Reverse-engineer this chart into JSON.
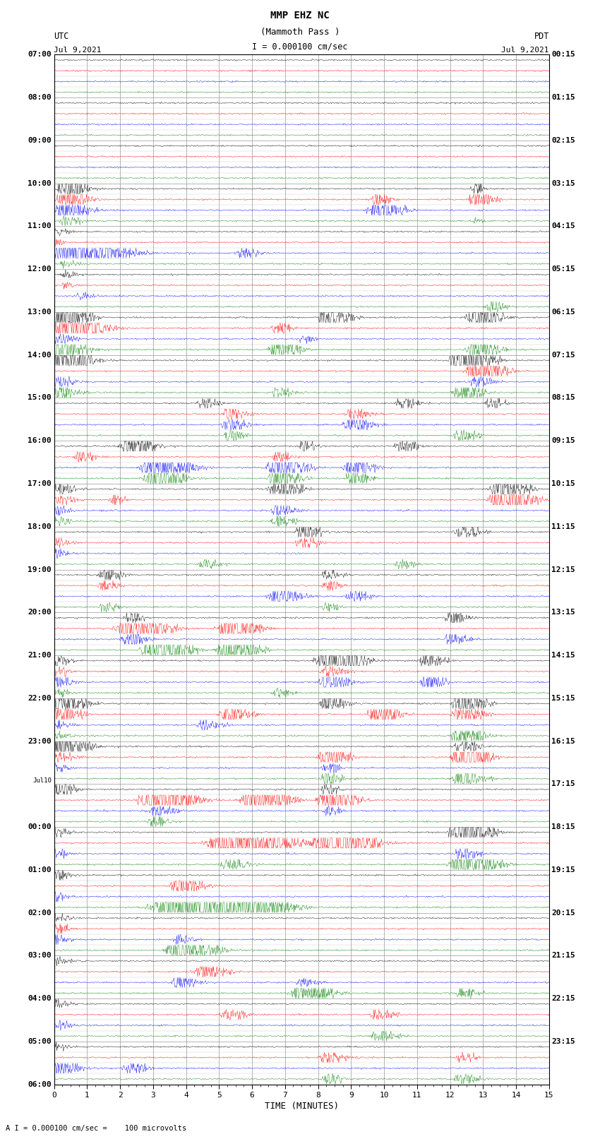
{
  "title_line1": "MMP EHZ NC",
  "title_line2": "(Mammoth Pass )",
  "title_scale": "I = 0.000100 cm/sec",
  "label_left_top": "UTC",
  "label_left_date": "Jul 9,2021",
  "label_right_top": "PDT",
  "label_right_date": "Jul 9,2021",
  "xlabel": "TIME (MINUTES)",
  "footer": "A I = 0.000100 cm/sec =    100 microvolts",
  "xlim": [
    0,
    15
  ],
  "xticks": [
    0,
    1,
    2,
    3,
    4,
    5,
    6,
    7,
    8,
    9,
    10,
    11,
    12,
    13,
    14,
    15
  ],
  "colors": [
    "black",
    "red",
    "blue",
    "green"
  ],
  "left_hour_labels": [
    "07:00",
    "08:00",
    "09:00",
    "10:00",
    "11:00",
    "12:00",
    "13:00",
    "14:00",
    "15:00",
    "16:00",
    "17:00",
    "18:00",
    "19:00",
    "20:00",
    "21:00",
    "22:00",
    "23:00",
    "Jul10",
    "00:00",
    "01:00",
    "02:00",
    "03:00",
    "04:00",
    "05:00",
    "06:00"
  ],
  "right_hour_labels": [
    "00:15",
    "01:15",
    "02:15",
    "03:15",
    "04:15",
    "05:15",
    "06:15",
    "07:15",
    "08:15",
    "09:15",
    "10:15",
    "11:15",
    "12:15",
    "13:15",
    "14:15",
    "15:15",
    "16:15",
    "17:15",
    "18:15",
    "19:15",
    "20:15",
    "21:15",
    "22:15",
    "23:15"
  ],
  "num_hours": 24,
  "traces_per_hour": 4,
  "bg_color": "white",
  "grid_color": "#999999",
  "minor_grid_color": "#cccccc"
}
